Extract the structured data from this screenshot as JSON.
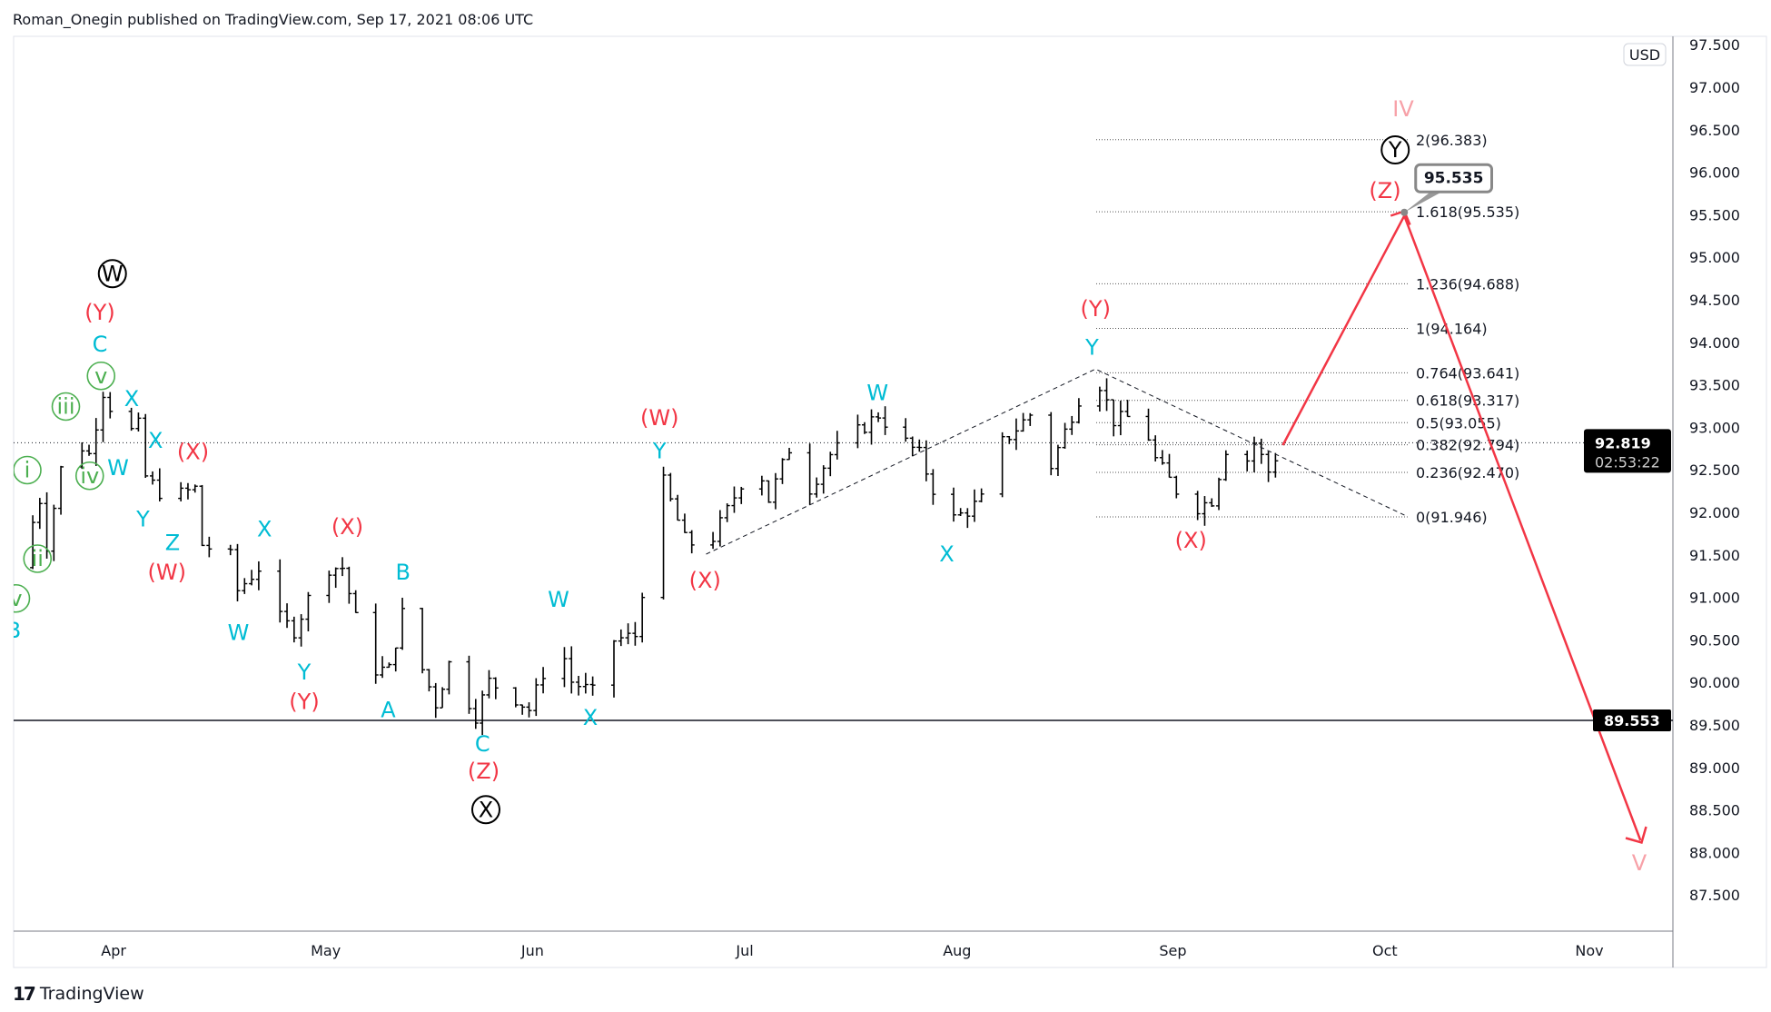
{
  "header": "Roman_Onegin published on TradingView.com, Sep 17, 2021 08:06 UTC",
  "footer": {
    "brand": "TradingView",
    "logo_icon": "tradingview-logo-icon"
  },
  "currency": "USD",
  "colors": {
    "red": "#f23645",
    "cyan": "#00bcd4",
    "green": "#4caf50",
    "pink": "#f7a1a8",
    "black": "#000000",
    "bars": "#000000"
  },
  "chart_data": {
    "type": "ohlc-bar",
    "y_ticks": [
      "87.500",
      "88.000",
      "88.500",
      "89.000",
      "89.500",
      "90.000",
      "90.500",
      "91.000",
      "91.500",
      "92.000",
      "92.500",
      "93.000",
      "93.500",
      "94.000",
      "94.500",
      "95.000",
      "95.500",
      "96.000",
      "96.500",
      "97.000",
      "97.500"
    ],
    "ylim": [
      87.25,
      97.6
    ],
    "x_ticks": [
      "Apr",
      "May",
      "Jun",
      "Jul",
      "Aug",
      "Sep",
      "Oct",
      "Nov"
    ],
    "year": 2021,
    "price_path": [
      [
        "03-19",
        91.35
      ],
      [
        "03-22",
        92.15
      ],
      [
        "03-23",
        91.62
      ],
      [
        "03-26",
        92.95
      ],
      [
        "03-29",
        92.68
      ],
      [
        "03-31",
        93.42
      ],
      [
        "04-03",
        92.89
      ],
      [
        "04-05",
        93.02
      ],
      [
        "04-06",
        92.42
      ],
      [
        "04-09",
        92.15
      ],
      [
        "04-13",
        92.28
      ],
      [
        "04-14",
        91.62
      ],
      [
        "04-18",
        91.48
      ],
      [
        "04-19",
        91.08
      ],
      [
        "04-22",
        91.35
      ],
      [
        "04-25",
        90.75
      ],
      [
        "04-27",
        90.61
      ],
      [
        "05-01",
        91.35
      ],
      [
        "05-04",
        91.35
      ],
      [
        "05-08",
        90.15
      ],
      [
        "05-11",
        90.15
      ],
      [
        "05-13",
        90.81
      ],
      [
        "05-15",
        90.35
      ],
      [
        "05-18",
        89.75
      ],
      [
        "05-20",
        90.22
      ],
      [
        "05-24",
        89.61
      ],
      [
        "05-26",
        90.01
      ],
      [
        "05-30",
        89.81
      ],
      [
        "06-01",
        89.68
      ],
      [
        "06-05",
        90.55
      ],
      [
        "06-07",
        90.01
      ],
      [
        "06-10",
        89.88
      ],
      [
        "06-12",
        90.48
      ],
      [
        "06-16",
        90.55
      ],
      [
        "06-17",
        91.08
      ],
      [
        "06-20",
        92.35
      ],
      [
        "06-23",
        91.68
      ],
      [
        "06-26",
        91.55
      ],
      [
        "06-29",
        92.02
      ],
      [
        "07-03",
        92.68
      ],
      [
        "07-05",
        92.15
      ],
      [
        "07-08",
        92.75
      ],
      [
        "07-10",
        92.15
      ],
      [
        "07-14",
        92.68
      ],
      [
        "07-21",
        93.15
      ],
      [
        "07-24",
        92.89
      ],
      [
        "07-27",
        92.68
      ],
      [
        "07-29",
        92.28
      ],
      [
        "07-31",
        91.88
      ],
      [
        "08-03",
        92.02
      ],
      [
        "08-05",
        92.15
      ],
      [
        "08-08",
        92.82
      ],
      [
        "08-12",
        93.15
      ],
      [
        "08-15",
        92.55
      ],
      [
        "08-18",
        93.15
      ],
      [
        "08-21",
        93.72
      ],
      [
        "08-24",
        93.08
      ],
      [
        "08-28",
        93.15
      ],
      [
        "08-30",
        92.62
      ],
      [
        "09-04",
        92.02
      ],
      [
        "09-07",
        92.15
      ],
      [
        "09-09",
        92.75
      ],
      [
        "09-11",
        92.42
      ],
      [
        "09-13",
        92.82
      ],
      [
        "09-15",
        92.48
      ],
      [
        "09-17",
        92.82
      ]
    ],
    "last_price": "92.819",
    "countdown": "02:53:22",
    "horizontal_level": "89.553",
    "fib_levels": [
      {
        "label": "2(96.383)",
        "value": 96.383
      },
      {
        "label": "1.618(95.535)",
        "value": 95.535
      },
      {
        "label": "1.236(94.688)",
        "value": 94.688
      },
      {
        "label": "1(94.164)",
        "value": 94.164
      },
      {
        "label": "0.764(93.641)",
        "value": 93.641
      },
      {
        "label": "0.618(93.317)",
        "value": 93.317
      },
      {
        "label": "0.5(93.055)",
        "value": 93.055
      },
      {
        "label": "0.382(92.794)",
        "value": 92.794
      },
      {
        "label": "0.236(92.470)",
        "value": 92.47
      },
      {
        "label": "0(91.946)",
        "value": 91.946
      }
    ],
    "target_callout": "95.535",
    "wave_labels": [
      {
        "text": "W",
        "style": "circle-black"
      },
      {
        "text": "X",
        "style": "circle-black"
      },
      {
        "text": "Y",
        "style": "circle-black"
      },
      {
        "text": "(Y)",
        "style": "red"
      },
      {
        "text": "(X)",
        "style": "red"
      },
      {
        "text": "(W)",
        "style": "red"
      },
      {
        "text": "(X)",
        "style": "red"
      },
      {
        "text": "(Y)",
        "style": "red"
      },
      {
        "text": "(Z)",
        "style": "red"
      },
      {
        "text": "(W)",
        "style": "red"
      },
      {
        "text": "(X)",
        "style": "red"
      },
      {
        "text": "(Y)",
        "style": "red"
      },
      {
        "text": "(X)",
        "style": "red"
      },
      {
        "text": "(Z)",
        "style": "red"
      },
      {
        "text": "C",
        "style": "cyan"
      },
      {
        "text": "X",
        "style": "cyan"
      },
      {
        "text": "W",
        "style": "cyan"
      },
      {
        "text": "X",
        "style": "cyan"
      },
      {
        "text": "Y",
        "style": "cyan"
      },
      {
        "text": "Z",
        "style": "cyan"
      },
      {
        "text": "X",
        "style": "cyan"
      },
      {
        "text": "W",
        "style": "cyan"
      },
      {
        "text": "Y",
        "style": "cyan"
      },
      {
        "text": "B",
        "style": "cyan"
      },
      {
        "text": "A",
        "style": "cyan"
      },
      {
        "text": "C",
        "style": "cyan"
      },
      {
        "text": "W",
        "style": "cyan"
      },
      {
        "text": "X",
        "style": "cyan"
      },
      {
        "text": "Y",
        "style": "cyan"
      },
      {
        "text": "W",
        "style": "cyan"
      },
      {
        "text": "X",
        "style": "cyan"
      },
      {
        "text": "Y",
        "style": "cyan"
      },
      {
        "text": "B",
        "style": "cyan"
      },
      {
        "text": "v",
        "style": "circle-green"
      },
      {
        "text": "iii",
        "style": "circle-green"
      },
      {
        "text": "i",
        "style": "circle-green"
      },
      {
        "text": "iv",
        "style": "circle-green"
      },
      {
        "text": "ii",
        "style": "circle-green"
      },
      {
        "text": "v",
        "style": "circle-green"
      },
      {
        "text": "IV",
        "style": "pink"
      },
      {
        "text": "V",
        "style": "pink"
      }
    ]
  }
}
